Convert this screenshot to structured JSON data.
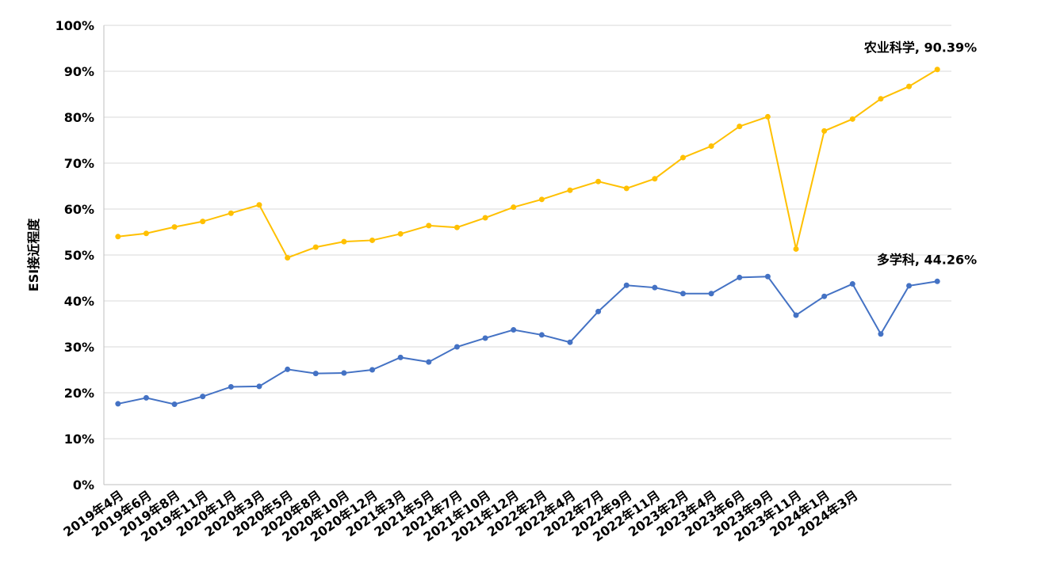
{
  "chart_data": {
    "type": "line",
    "ylabel": "ESI接近程度",
    "categories": [
      "2019年4月",
      "2019年6月",
      "2019年8月",
      "2019年11月",
      "2020年1月",
      "2020年3月",
      "2020年5月",
      "2020年8月",
      "2020年10月",
      "2020年12月",
      "2021年3月",
      "2021年5月",
      "2021年7月",
      "2021年10月",
      "2021年12月",
      "2022年2月",
      "2022年4月",
      "2022年7月",
      "2022年9月",
      "2022年11月",
      "2023年2月",
      "2023年4月",
      "2023年6月",
      "2023年9月",
      "2023年11月",
      "2024年1月",
      "2024年3月",
      null,
      null,
      null
    ],
    "series": [
      {
        "name": "农业科学",
        "color": "#FFC000",
        "values": [
          54,
          54.7,
          56.1,
          57.3,
          59.1,
          60.9,
          49.4,
          51.7,
          52.9,
          53.2,
          54.6,
          56.4,
          56,
          58.1,
          60.4,
          62.1,
          64.1,
          66,
          64.5,
          66.6,
          71.2,
          73.7,
          78,
          80.1,
          51.3,
          77,
          79.6,
          84,
          86.7,
          90.39
        ],
        "value_labels": [
          null,
          null,
          null,
          null,
          null,
          null,
          null,
          null,
          null,
          null,
          null,
          null,
          null,
          null,
          null,
          null,
          null,
          null,
          null,
          null,
          null,
          null,
          null,
          null,
          null,
          null,
          null,
          null,
          null,
          "农业科学, 90.39%"
        ]
      },
      {
        "name": "多学科",
        "color": "#4472C4",
        "values": [
          17.6,
          18.9,
          17.5,
          19.2,
          21.3,
          21.4,
          25.1,
          24.2,
          24.3,
          25,
          27.7,
          26.7,
          30,
          31.9,
          33.7,
          32.6,
          31,
          37.7,
          43.4,
          42.9,
          41.6,
          41.6,
          45.1,
          45.3,
          36.9,
          41,
          43.7,
          32.8,
          43.3,
          44.26
        ],
        "value_labels": [
          null,
          null,
          null,
          null,
          null,
          null,
          null,
          null,
          null,
          null,
          null,
          null,
          null,
          null,
          null,
          null,
          null,
          null,
          null,
          null,
          null,
          null,
          null,
          null,
          null,
          null,
          null,
          null,
          null,
          "多学科, 44.26%"
        ]
      }
    ],
    "ylim": [
      0,
      100
    ],
    "yticks": [
      {
        "value": 0,
        "label": "0%"
      },
      {
        "value": 10,
        "label": "10%"
      },
      {
        "value": 20,
        "label": "20%"
      },
      {
        "value": 30,
        "label": "30%"
      },
      {
        "value": 40,
        "label": "40%"
      },
      {
        "value": 50,
        "label": "50%"
      },
      {
        "value": 60,
        "label": "60%"
      },
      {
        "value": 70,
        "label": "70%"
      },
      {
        "value": 80,
        "label": "80%"
      },
      {
        "value": 90,
        "label": "90%"
      },
      {
        "value": 100,
        "label": "100%"
      }
    ],
    "grid": true
  }
}
